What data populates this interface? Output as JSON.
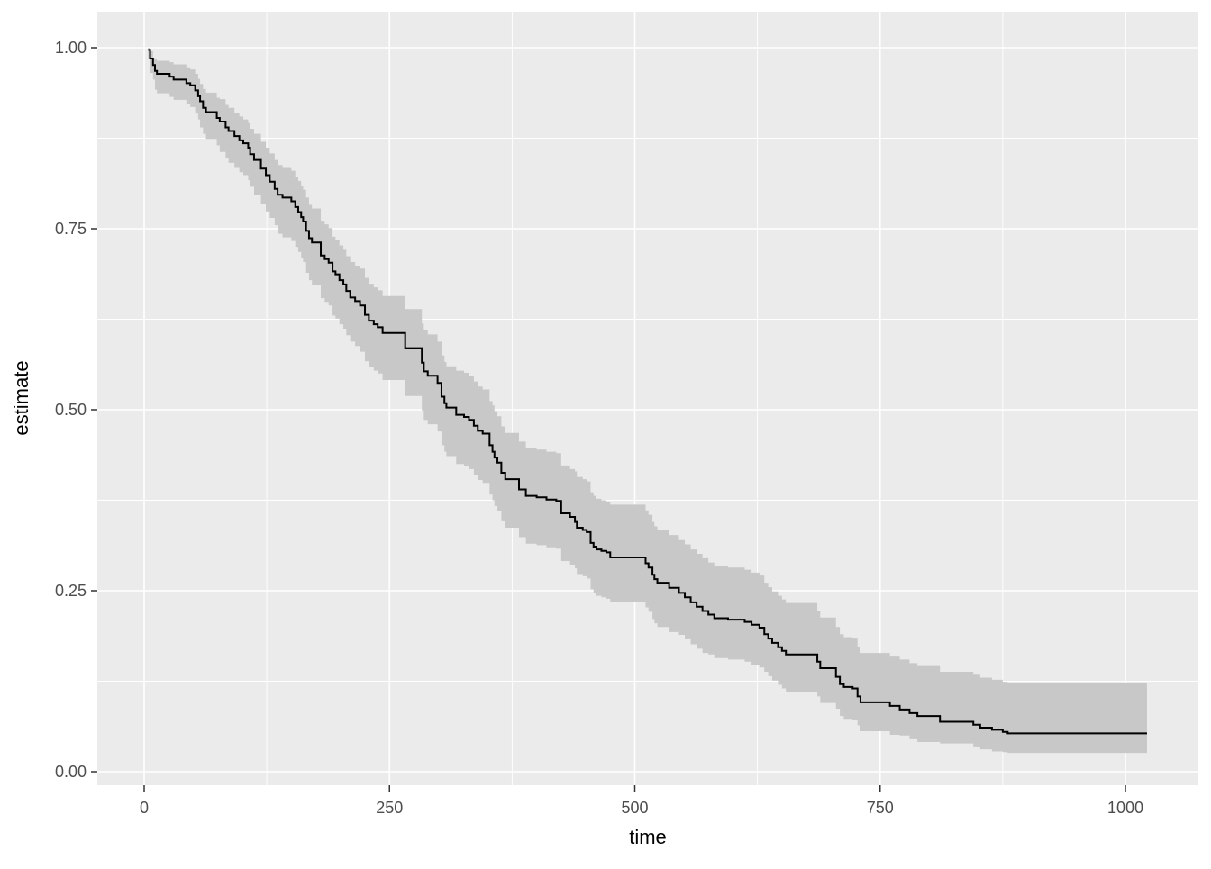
{
  "chart_data": {
    "type": "line",
    "geom": "kaplan-meier-step-curve-with-confidence-ribbon",
    "title": "",
    "xlabel": "time",
    "ylabel": "estimate",
    "legend": "none",
    "grid": "white major+minor gridlines on grey panel",
    "x_ticks": [
      0,
      250,
      500,
      750,
      1000
    ],
    "x_tick_labels": [
      "0",
      "250",
      "500",
      "750",
      "1000"
    ],
    "y_ticks": [
      0,
      0.25,
      0.5,
      0.75,
      1
    ],
    "y_tick_labels": [
      "0.00",
      "0.25",
      "0.50",
      "0.75",
      "1.00"
    ],
    "xlim": [
      -48,
      1074
    ],
    "ylim": [
      -0.019,
      1.05
    ],
    "end_time": 1022,
    "time": [
      4,
      6,
      9,
      11,
      13,
      26,
      30,
      43,
      47,
      52,
      55,
      57,
      60,
      63,
      74,
      77,
      83,
      86,
      92,
      97,
      101,
      106,
      108,
      112,
      119,
      124,
      128,
      133,
      136,
      141,
      150,
      154,
      157,
      160,
      162,
      165,
      168,
      171,
      180,
      184,
      188,
      192,
      195,
      199,
      203,
      206,
      210,
      215,
      220,
      225,
      229,
      234,
      238,
      243,
      266,
      283,
      285,
      289,
      299,
      303,
      306,
      308,
      318,
      326,
      331,
      336,
      340,
      345,
      352,
      355,
      357,
      360,
      364,
      368,
      382,
      389,
      400,
      410,
      420,
      425,
      434,
      439,
      441,
      447,
      451,
      455,
      458,
      461,
      466,
      471,
      475,
      511,
      514,
      518,
      520,
      523,
      535,
      545,
      551,
      557,
      563,
      569,
      575,
      581,
      595,
      612,
      619,
      627,
      632,
      636,
      640,
      646,
      650,
      654,
      686,
      689,
      705,
      709,
      713,
      722,
      727,
      730,
      760,
      770,
      780,
      788,
      811,
      845,
      852,
      864,
      875,
      880
    ],
    "estimate": [
      0.997,
      0.985,
      0.976,
      0.968,
      0.964,
      0.96,
      0.956,
      0.951,
      0.948,
      0.941,
      0.933,
      0.926,
      0.917,
      0.911,
      0.903,
      0.898,
      0.89,
      0.885,
      0.878,
      0.872,
      0.868,
      0.862,
      0.853,
      0.845,
      0.833,
      0.824,
      0.815,
      0.805,
      0.797,
      0.793,
      0.788,
      0.78,
      0.773,
      0.766,
      0.76,
      0.747,
      0.737,
      0.731,
      0.713,
      0.708,
      0.703,
      0.691,
      0.687,
      0.679,
      0.673,
      0.664,
      0.655,
      0.65,
      0.644,
      0.631,
      0.623,
      0.618,
      0.614,
      0.606,
      0.585,
      0.565,
      0.553,
      0.547,
      0.537,
      0.518,
      0.509,
      0.503,
      0.493,
      0.49,
      0.486,
      0.478,
      0.471,
      0.467,
      0.451,
      0.442,
      0.434,
      0.427,
      0.413,
      0.404,
      0.39,
      0.381,
      0.379,
      0.376,
      0.374,
      0.357,
      0.352,
      0.345,
      0.337,
      0.334,
      0.331,
      0.316,
      0.311,
      0.307,
      0.305,
      0.303,
      0.296,
      0.288,
      0.282,
      0.272,
      0.266,
      0.261,
      0.254,
      0.247,
      0.241,
      0.234,
      0.228,
      0.222,
      0.217,
      0.212,
      0.21,
      0.207,
      0.203,
      0.199,
      0.19,
      0.184,
      0.178,
      0.172,
      0.167,
      0.162,
      0.152,
      0.143,
      0.131,
      0.121,
      0.117,
      0.115,
      0.104,
      0.096,
      0.091,
      0.086,
      0.081,
      0.077,
      0.069,
      0.065,
      0.061,
      0.058,
      0.055,
      0.053
    ],
    "conf_high": [
      1.0,
      0.995,
      0.986,
      0.984,
      0.982,
      0.98,
      0.977,
      0.973,
      0.97,
      0.964,
      0.957,
      0.95,
      0.943,
      0.938,
      0.931,
      0.929,
      0.921,
      0.917,
      0.91,
      0.905,
      0.901,
      0.896,
      0.888,
      0.881,
      0.87,
      0.862,
      0.854,
      0.845,
      0.838,
      0.834,
      0.83,
      0.822,
      0.816,
      0.809,
      0.804,
      0.793,
      0.783,
      0.778,
      0.761,
      0.756,
      0.751,
      0.739,
      0.735,
      0.727,
      0.721,
      0.712,
      0.704,
      0.699,
      0.695,
      0.682,
      0.674,
      0.669,
      0.665,
      0.657,
      0.639,
      0.619,
      0.61,
      0.604,
      0.594,
      0.575,
      0.566,
      0.56,
      0.554,
      0.551,
      0.547,
      0.539,
      0.532,
      0.528,
      0.512,
      0.506,
      0.498,
      0.491,
      0.477,
      0.468,
      0.456,
      0.447,
      0.445,
      0.442,
      0.44,
      0.423,
      0.418,
      0.415,
      0.407,
      0.404,
      0.401,
      0.386,
      0.381,
      0.377,
      0.375,
      0.373,
      0.369,
      0.361,
      0.355,
      0.345,
      0.339,
      0.334,
      0.327,
      0.32,
      0.314,
      0.307,
      0.301,
      0.295,
      0.289,
      0.284,
      0.282,
      0.279,
      0.275,
      0.271,
      0.261,
      0.255,
      0.249,
      0.243,
      0.238,
      0.233,
      0.222,
      0.213,
      0.2,
      0.19,
      0.186,
      0.184,
      0.172,
      0.164,
      0.159,
      0.155,
      0.15,
      0.146,
      0.138,
      0.134,
      0.13,
      0.127,
      0.124,
      0.122
    ],
    "conf_low": [
      0.985,
      0.965,
      0.956,
      0.942,
      0.937,
      0.932,
      0.928,
      0.922,
      0.918,
      0.909,
      0.901,
      0.89,
      0.881,
      0.874,
      0.865,
      0.856,
      0.847,
      0.841,
      0.834,
      0.828,
      0.824,
      0.817,
      0.808,
      0.797,
      0.784,
      0.774,
      0.765,
      0.755,
      0.743,
      0.738,
      0.733,
      0.725,
      0.718,
      0.71,
      0.704,
      0.689,
      0.679,
      0.672,
      0.654,
      0.649,
      0.644,
      0.63,
      0.626,
      0.618,
      0.612,
      0.603,
      0.594,
      0.588,
      0.58,
      0.567,
      0.559,
      0.554,
      0.55,
      0.541,
      0.519,
      0.499,
      0.486,
      0.48,
      0.47,
      0.451,
      0.442,
      0.436,
      0.425,
      0.422,
      0.418,
      0.41,
      0.403,
      0.399,
      0.383,
      0.375,
      0.367,
      0.36,
      0.346,
      0.337,
      0.324,
      0.315,
      0.313,
      0.31,
      0.308,
      0.291,
      0.286,
      0.281,
      0.273,
      0.27,
      0.267,
      0.252,
      0.247,
      0.243,
      0.241,
      0.239,
      0.235,
      0.227,
      0.221,
      0.211,
      0.205,
      0.2,
      0.193,
      0.189,
      0.183,
      0.176,
      0.17,
      0.164,
      0.162,
      0.157,
      0.155,
      0.152,
      0.148,
      0.144,
      0.138,
      0.132,
      0.126,
      0.12,
      0.115,
      0.11,
      0.104,
      0.095,
      0.087,
      0.077,
      0.073,
      0.071,
      0.064,
      0.056,
      0.051,
      0.05,
      0.045,
      0.041,
      0.039,
      0.035,
      0.031,
      0.028,
      0.027,
      0.026
    ],
    "colors": {
      "panel_bg": "#ebebeb",
      "grid": "#ffffff",
      "ribbon": "#c8c8c8",
      "line": "#000000",
      "tick_label": "#4d4d4d",
      "tick_mark": "#333333",
      "axis_title": "#000000",
      "outer_bg": "#ffffff"
    }
  }
}
